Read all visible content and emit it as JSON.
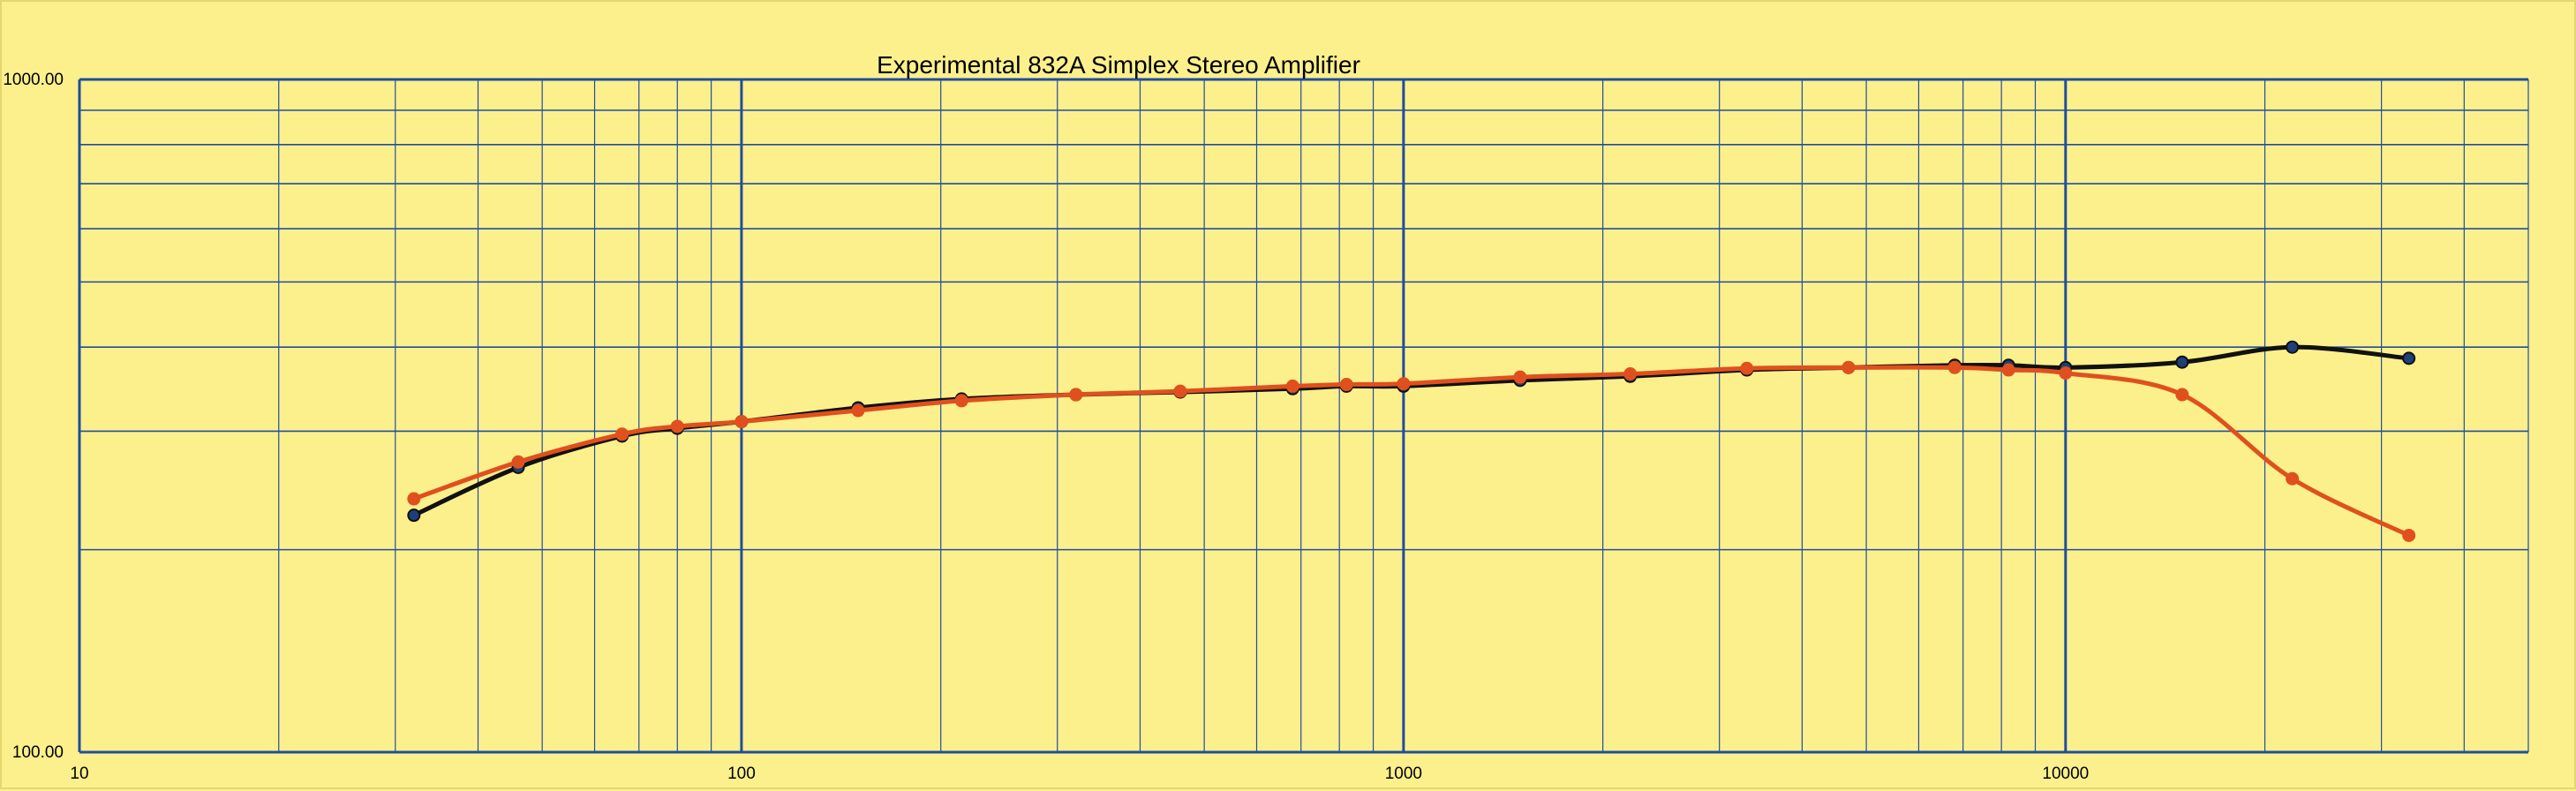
{
  "chart_data": {
    "type": "line",
    "title": "Experimental 832A Simplex Stereo Amplifier",
    "xlabel": "",
    "ylabel": "",
    "x_scale": "log",
    "y_scale": "log",
    "xlim": [
      10,
      50000
    ],
    "ylim": [
      100,
      1000
    ],
    "x_tick_labels": [
      "10",
      "100",
      "1000",
      "10000"
    ],
    "y_tick_labels": [
      "100.00",
      "1000.00"
    ],
    "grid": true,
    "legend": "none",
    "colors": {
      "background": "#FCF08C",
      "grid": "#1F4E9E",
      "grid_major": "#1F4E9E"
    },
    "series": [
      {
        "color": "#111111",
        "marker_fill": "#1F3F7A",
        "x": [
          32,
          46,
          66,
          80,
          100,
          150,
          215,
          320,
          460,
          680,
          820,
          1000,
          1500,
          2200,
          3300,
          4700,
          6800,
          8200,
          10000,
          15000,
          22000,
          33000
        ],
        "y": [
          225,
          265,
          295,
          303,
          310,
          325,
          335,
          340,
          343,
          347,
          350,
          350,
          357,
          362,
          370,
          373,
          376,
          376,
          373,
          380,
          400,
          385
        ]
      },
      {
        "color": "#E0501E",
        "marker_fill": "#E0501E",
        "x": [
          32,
          46,
          66,
          80,
          100,
          150,
          215,
          320,
          460,
          680,
          820,
          1000,
          1500,
          2200,
          3300,
          4700,
          6800,
          8200,
          10000,
          15000,
          22000,
          33000
        ],
        "y": [
          238,
          270,
          297,
          305,
          310,
          322,
          333,
          340,
          344,
          350,
          352,
          353,
          361,
          365,
          372,
          373,
          373,
          370,
          366,
          340,
          255,
          210
        ]
      }
    ]
  }
}
